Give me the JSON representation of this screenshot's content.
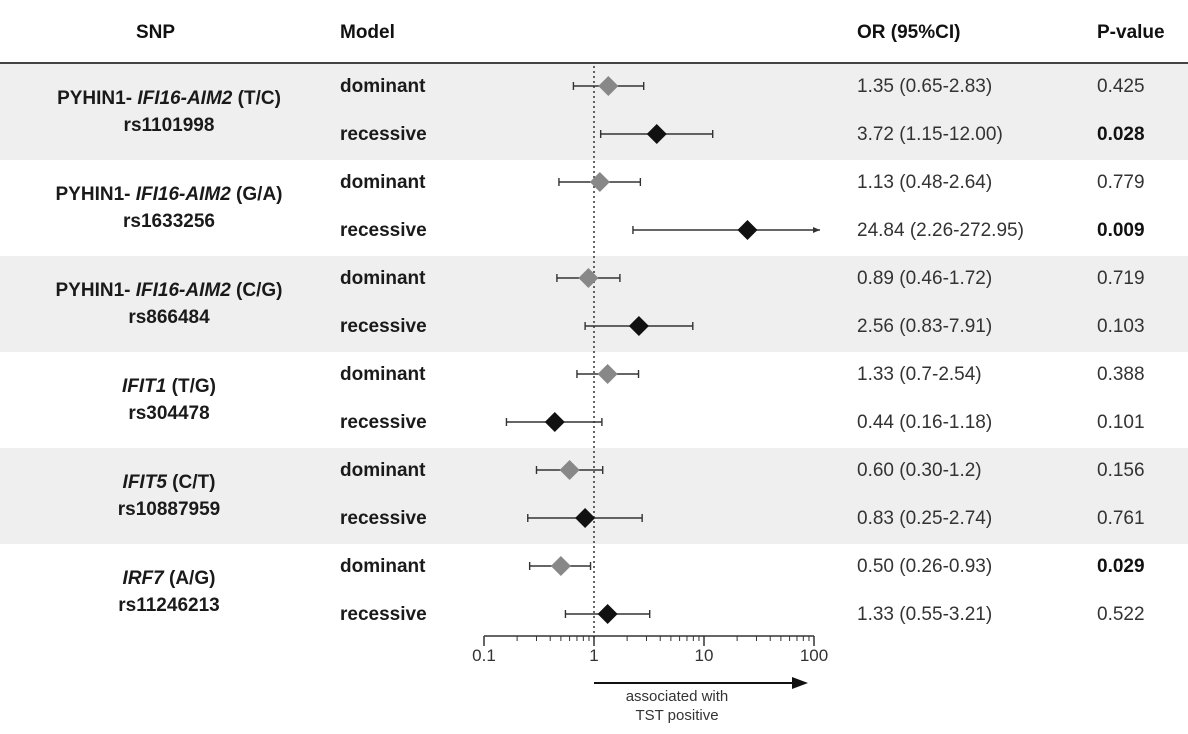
{
  "headers": {
    "snp": "SNP",
    "model": "Model",
    "or": "OR (95%CI)",
    "p": "P-value"
  },
  "rows": [
    {
      "gene_prefix": "PYHIN1- ",
      "gene_italic": "IFI16-AIM2",
      "alleles": " (T/C)",
      "rsid": "rs1101998",
      "models": [
        {
          "model": "dominant",
          "or_text": "1.35 (0.65-2.83)",
          "p": "0.425",
          "significant": false
        },
        {
          "model": "recessive",
          "or_text": "3.72 (1.15-12.00)",
          "p": "0.028",
          "significant": true
        }
      ]
    },
    {
      "gene_prefix": "PYHIN1- ",
      "gene_italic": "IFI16-AIM2",
      "alleles": " (G/A)",
      "rsid": "rs1633256",
      "models": [
        {
          "model": "dominant",
          "or_text": "1.13 (0.48-2.64)",
          "p": "0.779",
          "significant": false
        },
        {
          "model": "recessive",
          "or_text": "24.84 (2.26-272.95)",
          "p": "0.009",
          "significant": true
        }
      ]
    },
    {
      "gene_prefix": "PYHIN1- ",
      "gene_italic": "IFI16-AIM2",
      "alleles": " (C/G)",
      "rsid": "rs866484",
      "models": [
        {
          "model": "dominant",
          "or_text": "0.89 (0.46-1.72)",
          "p": "0.719",
          "significant": false
        },
        {
          "model": "recessive",
          "or_text": "2.56 (0.83-7.91)",
          "p": "0.103",
          "significant": false
        }
      ]
    },
    {
      "gene_prefix": "",
      "gene_italic": "IFIT1",
      "alleles": " (T/G)",
      "rsid": "rs304478",
      "models": [
        {
          "model": "dominant",
          "or_text": "1.33 (0.7-2.54)",
          "p": "0.388",
          "significant": false
        },
        {
          "model": "recessive",
          "or_text": "0.44 (0.16-1.18)",
          "p": "0.101",
          "significant": false
        }
      ]
    },
    {
      "gene_prefix": "",
      "gene_italic": "IFIT5",
      "alleles": " (C/T)",
      "rsid": "rs10887959",
      "models": [
        {
          "model": "dominant",
          "or_text": "0.60 (0.30-1.2)",
          "p": "0.156",
          "significant": false
        },
        {
          "model": "recessive",
          "or_text": "0.83 (0.25-2.74)",
          "p": "0.761",
          "significant": false
        }
      ]
    },
    {
      "gene_prefix": "",
      "gene_italic": "IRF7",
      "alleles": " (A/G)",
      "rsid": "rs11246213",
      "models": [
        {
          "model": "dominant",
          "or_text": "0.50 (0.26-0.93)",
          "p": "0.029",
          "significant": true
        },
        {
          "model": "recessive",
          "or_text": "1.33 (0.55-3.21)",
          "p": "0.522",
          "significant": false
        }
      ]
    }
  ],
  "chart_data": {
    "type": "forest",
    "x_scale": "log",
    "xlim": [
      0.1,
      100
    ],
    "reference_line": 1,
    "x_ticks": [
      "0.1",
      "1",
      "10",
      "100"
    ],
    "arrow_label": [
      "associated with",
      "TST positive"
    ],
    "series": [
      {
        "snp": "rs1101998",
        "model": "dominant",
        "or": 1.35,
        "ci": [
          0.65,
          2.83
        ]
      },
      {
        "snp": "rs1101998",
        "model": "recessive",
        "or": 3.72,
        "ci": [
          1.15,
          12.0
        ]
      },
      {
        "snp": "rs1633256",
        "model": "dominant",
        "or": 1.13,
        "ci": [
          0.48,
          2.64
        ]
      },
      {
        "snp": "rs1633256",
        "model": "recessive",
        "or": 24.84,
        "ci": [
          2.26,
          272.95
        ]
      },
      {
        "snp": "rs866484",
        "model": "dominant",
        "or": 0.89,
        "ci": [
          0.46,
          1.72
        ]
      },
      {
        "snp": "rs866484",
        "model": "recessive",
        "or": 2.56,
        "ci": [
          0.83,
          7.91
        ]
      },
      {
        "snp": "rs304478",
        "model": "dominant",
        "or": 1.33,
        "ci": [
          0.7,
          2.54
        ]
      },
      {
        "snp": "rs304478",
        "model": "recessive",
        "or": 0.44,
        "ci": [
          0.16,
          1.18
        ]
      },
      {
        "snp": "rs10887959",
        "model": "dominant",
        "or": 0.6,
        "ci": [
          0.3,
          1.2
        ]
      },
      {
        "snp": "rs10887959",
        "model": "recessive",
        "or": 0.83,
        "ci": [
          0.25,
          2.74
        ]
      },
      {
        "snp": "rs11246213",
        "model": "dominant",
        "or": 0.5,
        "ci": [
          0.26,
          0.93
        ]
      },
      {
        "snp": "rs11246213",
        "model": "recessive",
        "or": 1.33,
        "ci": [
          0.55,
          3.21
        ]
      }
    ],
    "colors": {
      "dominant": "#888888",
      "recessive": "#111111",
      "band_shaded": "#efefef"
    }
  }
}
